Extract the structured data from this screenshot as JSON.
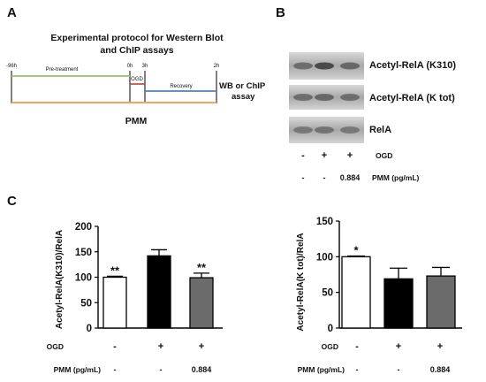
{
  "panels": {
    "a": {
      "letter": "A",
      "title_line1": "Experimental protocol for Western Blot",
      "title_line2": "and ChIP assays",
      "timeline_ticks": [
        "-96h",
        "0h",
        "3h",
        "2h"
      ],
      "phases": [
        {
          "label": "Pre-treatment",
          "color": "#92c36e"
        },
        {
          "label": "OGD",
          "color": "#c0504d"
        },
        {
          "label": "Recovery",
          "color": "#4f81bd"
        }
      ],
      "pmm_bar_color": "#f4a460",
      "endpoint_line1": "WB or ChIP",
      "endpoint_line2": "assay",
      "pmm_label": "PMM"
    },
    "b": {
      "letter": "B",
      "blot_labels": [
        "Acetyl-RelA (K310)",
        "Acetyl-RelA (K tot)",
        "RelA"
      ],
      "row_labels": [
        "OGD",
        "PMM (pg/mL)"
      ],
      "ogd_values": [
        "-",
        "+",
        "+"
      ],
      "pmm_values": [
        "-",
        "-",
        "0.884"
      ]
    },
    "c": {
      "letter": "C",
      "row_labels": [
        "OGD",
        "PMM (pg/mL)"
      ],
      "ogd_values": [
        "-",
        "+",
        "+"
      ],
      "pmm_values": [
        "-",
        "-",
        "0.884"
      ]
    }
  },
  "chart_data": [
    {
      "type": "bar",
      "ylabel": "Acetyl-RelA(K310)/RelA",
      "ylim": [
        0,
        200
      ],
      "yticks": [
        "0",
        "50",
        "100",
        "150",
        "200"
      ],
      "values": [
        100,
        142,
        99
      ],
      "errors": [
        2,
        12,
        9
      ],
      "bar_colors": [
        "#ffffff",
        "#000000",
        "#6b6b6b"
      ],
      "significance": [
        "**",
        "",
        "**"
      ]
    },
    {
      "type": "bar",
      "ylabel": "Acetyl-RelA(K tot)/RelA",
      "ylim": [
        0,
        150
      ],
      "yticks": [
        "0",
        "50",
        "100",
        "150"
      ],
      "values": [
        100,
        69,
        73
      ],
      "errors": [
        1,
        15,
        12
      ],
      "bar_colors": [
        "#ffffff",
        "#000000",
        "#6b6b6b"
      ],
      "significance": [
        "*",
        "",
        ""
      ]
    }
  ]
}
